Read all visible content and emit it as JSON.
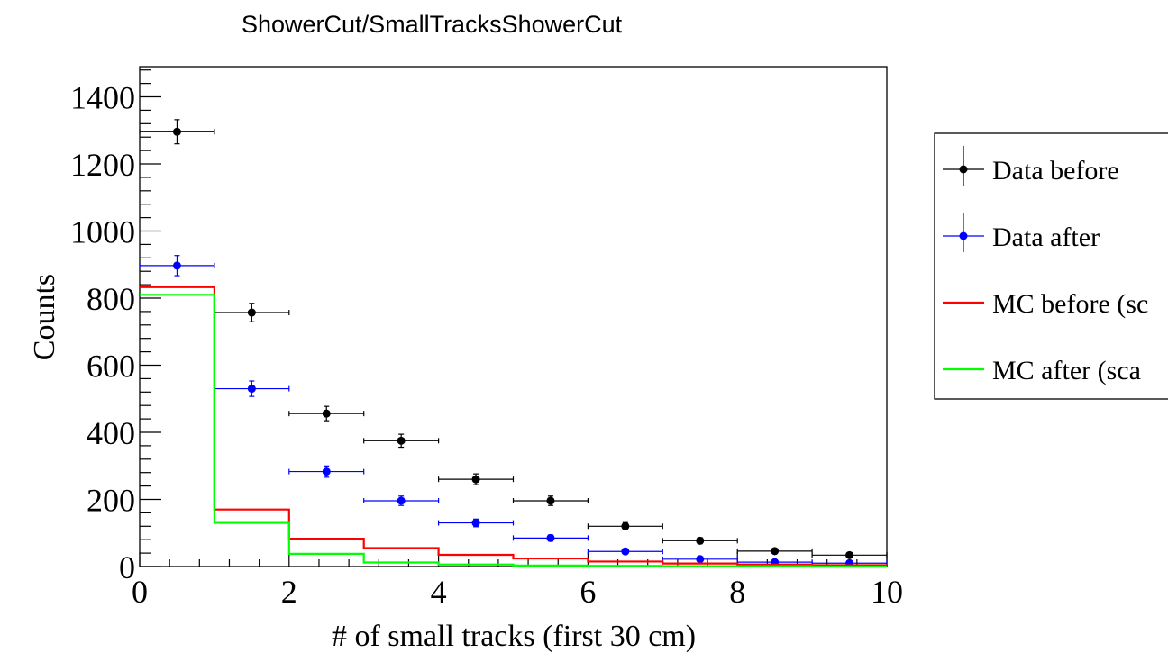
{
  "chart_data": {
    "type": "histogram",
    "title": "ShowerCut/SmallTracksShowerCut",
    "xlabel": "# of small tracks (first 30 cm)",
    "ylabel": "Counts",
    "xlim": [
      0,
      10
    ],
    "ylim": [
      0,
      1490
    ],
    "x_ticks": [
      "0",
      "2",
      "4",
      "6",
      "8",
      "10"
    ],
    "y_ticks": [
      "0",
      "200",
      "400",
      "600",
      "800",
      "1000",
      "1200",
      "1400"
    ],
    "bin_edges": [
      0,
      1,
      2,
      3,
      4,
      5,
      6,
      7,
      8,
      9,
      10
    ],
    "series": [
      {
        "name": "Data before",
        "style": "points-with-errors",
        "color": "#000000",
        "x": [
          0.5,
          1.5,
          2.5,
          3.5,
          4.5,
          5.5,
          6.5,
          7.5,
          8.5,
          9.5
        ],
        "values": [
          1296,
          757,
          456,
          375,
          260,
          196,
          120,
          77,
          46,
          34
        ],
        "errors": [
          36,
          27.5,
          21.4,
          19.4,
          16.1,
          14,
          11,
          8.8,
          6.8,
          5.8
        ]
      },
      {
        "name": "Data after",
        "style": "points-with-errors",
        "color": "#0000ff",
        "x": [
          0.5,
          1.5,
          2.5,
          3.5,
          4.5,
          5.5,
          6.5,
          7.5,
          8.5,
          9.5
        ],
        "values": [
          897,
          530,
          283,
          196,
          130,
          85,
          45,
          22,
          13,
          10
        ],
        "errors": [
          30,
          23,
          16.8,
          14,
          11.4,
          9.2,
          6.7,
          4.7,
          3.6,
          3.2
        ]
      },
      {
        "name": "MC before (sc",
        "style": "step",
        "color": "#ff0000",
        "values": [
          833,
          170,
          83,
          55,
          35,
          24,
          15,
          9,
          6,
          4
        ]
      },
      {
        "name": "MC after (sca",
        "style": "step",
        "color": "#00ff00",
        "values": [
          810,
          130,
          38,
          12,
          6,
          3,
          2,
          1,
          1,
          0
        ]
      }
    ],
    "legend_position": "right, outside plot area",
    "grid": false
  }
}
